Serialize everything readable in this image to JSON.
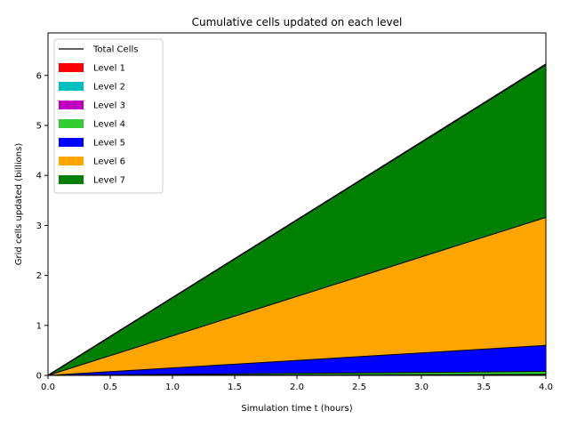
{
  "chart_data": {
    "type": "area",
    "title": "Cumulative cells updated on each level",
    "xlabel": "Simulation time t (hours)",
    "ylabel": "Grid cells updated (billions)",
    "xlim": [
      0,
      4.0
    ],
    "ylim": [
      0,
      6.85
    ],
    "xticks": [
      0.0,
      0.5,
      1.0,
      1.5,
      2.0,
      2.5,
      3.0,
      3.5,
      4.0
    ],
    "xtick_labels": [
      "0.0",
      "0.5",
      "1.0",
      "1.5",
      "2.0",
      "2.5",
      "3.0",
      "3.5",
      "4.0"
    ],
    "yticks": [
      0,
      1,
      2,
      3,
      4,
      5,
      6
    ],
    "ytick_labels": [
      "0",
      "1",
      "2",
      "3",
      "4",
      "5",
      "6"
    ],
    "grid": false,
    "legend_position": "top-left",
    "stacked": true,
    "x": [
      0,
      4.0
    ],
    "series": [
      {
        "name": "Level 1",
        "color": "#ff0000",
        "values": [
          0,
          0.005
        ]
      },
      {
        "name": "Level 2",
        "color": "#00bfbf",
        "values": [
          0,
          0.005
        ]
      },
      {
        "name": "Level 3",
        "color": "#bf00bf",
        "values": [
          0,
          0.01
        ]
      },
      {
        "name": "Level 4",
        "color": "#32cd32",
        "values": [
          0,
          0.06
        ]
      },
      {
        "name": "Level 5",
        "color": "#0000ff",
        "values": [
          0,
          0.52
        ]
      },
      {
        "name": "Level 6",
        "color": "#ffa500",
        "values": [
          0,
          2.56
        ]
      },
      {
        "name": "Level 7",
        "color": "#008000",
        "values": [
          0,
          3.07
        ]
      }
    ],
    "total_line": {
      "name": "Total Cells",
      "color": "#000000",
      "values": [
        0,
        6.22
      ]
    }
  }
}
